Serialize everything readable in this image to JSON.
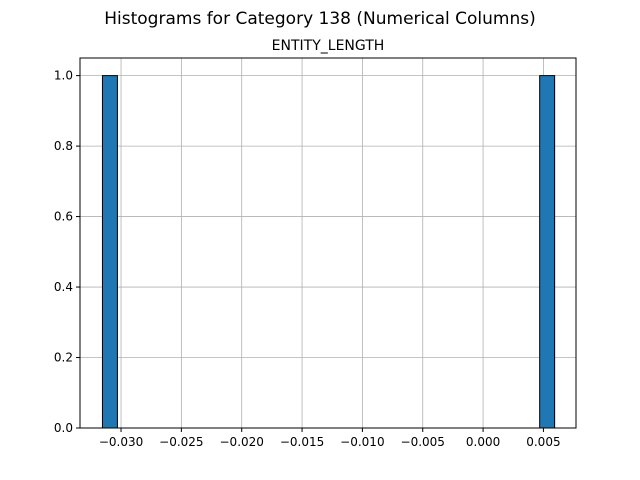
{
  "chart_data": {
    "type": "bar",
    "title": "Histograms for Category 138 (Numerical Columns)",
    "subtitle": "ENTITY_LENGTH",
    "xlabel": "",
    "ylabel": "",
    "xlim": [
      -0.0334,
      0.0077
    ],
    "ylim": [
      0,
      1.05
    ],
    "xticks": [
      -0.03,
      -0.025,
      -0.02,
      -0.015,
      -0.01,
      -0.005,
      0.0,
      0.005
    ],
    "xtick_labels": [
      "−0.030",
      "−0.025",
      "−0.020",
      "−0.015",
      "−0.010",
      "−0.005",
      "0.000",
      "0.005"
    ],
    "yticks": [
      0.0,
      0.2,
      0.4,
      0.6,
      0.8,
      1.0
    ],
    "ytick_labels": [
      "0.0",
      "0.2",
      "0.4",
      "0.6",
      "0.8",
      "1.0"
    ],
    "grid": true,
    "bar_color": "#1f77b4",
    "bins": [
      {
        "x0": -0.03154,
        "x1": -0.0303,
        "value": 1
      },
      {
        "x0": 0.00469,
        "x1": 0.00593,
        "value": 1
      }
    ]
  }
}
